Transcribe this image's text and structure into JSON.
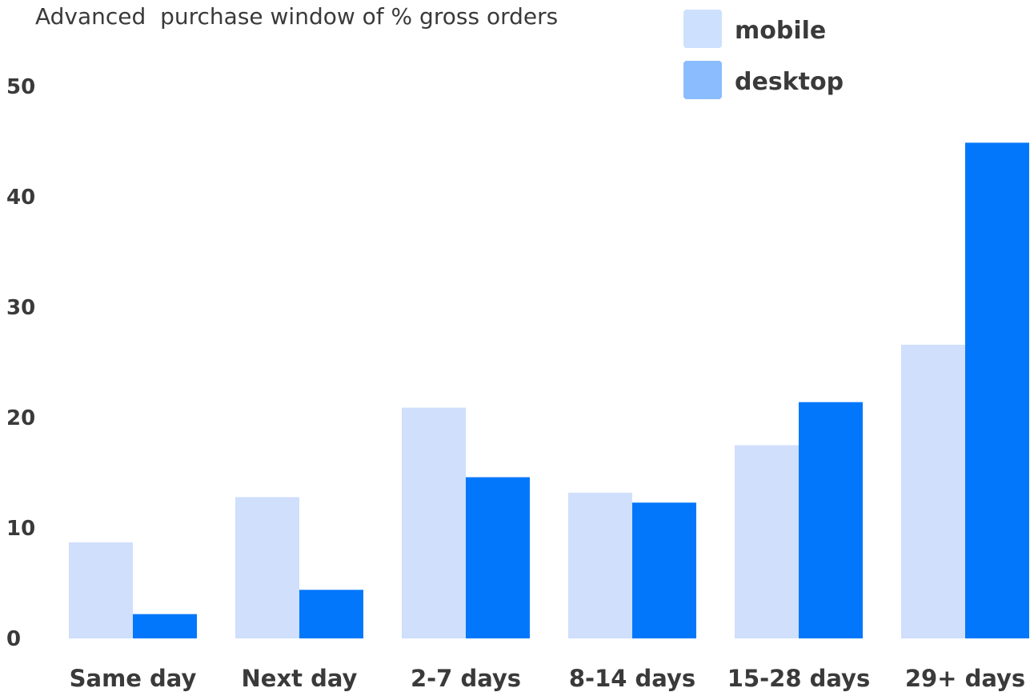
{
  "chart_data": {
    "type": "bar",
    "title": "Advanced  purchase window of % gross orders",
    "categories": [
      "Same day",
      "Next day",
      "2-7 days",
      "8-14 days",
      "15-28 days",
      "29+ days"
    ],
    "series": [
      {
        "name": "mobile",
        "values": [
          8.7,
          12.8,
          20.9,
          13.2,
          17.5,
          26.6
        ],
        "color": "#cfdffc"
      },
      {
        "name": "desktop",
        "values": [
          2.2,
          4.4,
          14.6,
          12.3,
          21.4,
          44.9
        ],
        "color": "#0377fb"
      }
    ],
    "legend_swatches": [
      "#cde0fd",
      "#8bbcfd"
    ],
    "ylim": [
      0,
      50
    ],
    "yticks": [
      0,
      10,
      20,
      30,
      40,
      50
    ],
    "xlabel": "",
    "ylabel": "",
    "grid": false,
    "legend_position": "top-right"
  }
}
